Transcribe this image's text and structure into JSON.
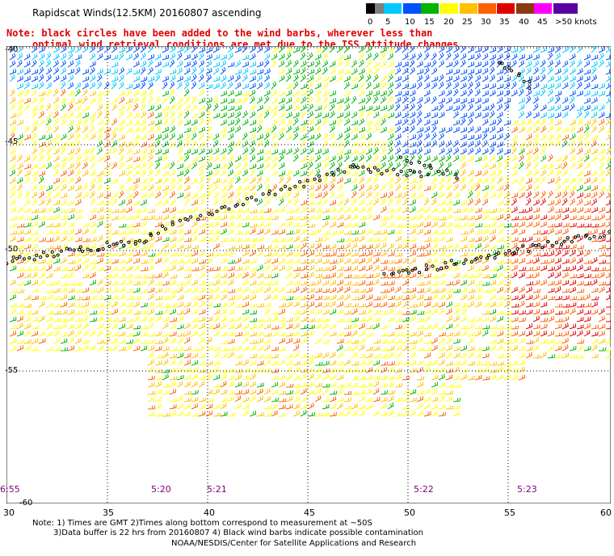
{
  "header": {
    "title": "Rapidscat Winds(12.5KM) 20160807 ascending",
    "note_line1": "Note: black circles have been added to the wind barbs, wherever less than",
    "note_line2": "optimal wind retrieval conditions are met due to the ISS attitude changes."
  },
  "legend": {
    "labels": [
      "0",
      "5",
      "10",
      "15",
      "20",
      "25",
      "30",
      "35",
      "40",
      "45",
      ">50 knots"
    ],
    "colors": [
      "#000000",
      "#7f7f7f",
      "#00c8ff",
      "#0050ff",
      "#00b400",
      "#ffff00",
      "#ffc000",
      "#ff6000",
      "#e00000",
      "#8b3a0f",
      "#ff00ff",
      "#5a00a0"
    ]
  },
  "map": {
    "lat_labels": [
      "-40",
      "-45",
      "-50",
      "-55",
      "-60"
    ],
    "lon_labels": [
      "30",
      "35",
      "40",
      "45",
      "50",
      "55",
      "60"
    ],
    "time_labels": [
      "6:55",
      "5:20",
      "5:21",
      "5:22",
      "5:23"
    ]
  },
  "footer": {
    "line1": "Note: 1) Times are GMT 2)Times along bottom correspond to measurement at ~50S",
    "line2": "3)Data buffer is 22 hrs from 20160807 4) Black wind barbs indicate possible contamination",
    "line3": "NOAA/NESDIS/Center for Satellite Applications and Research"
  }
}
